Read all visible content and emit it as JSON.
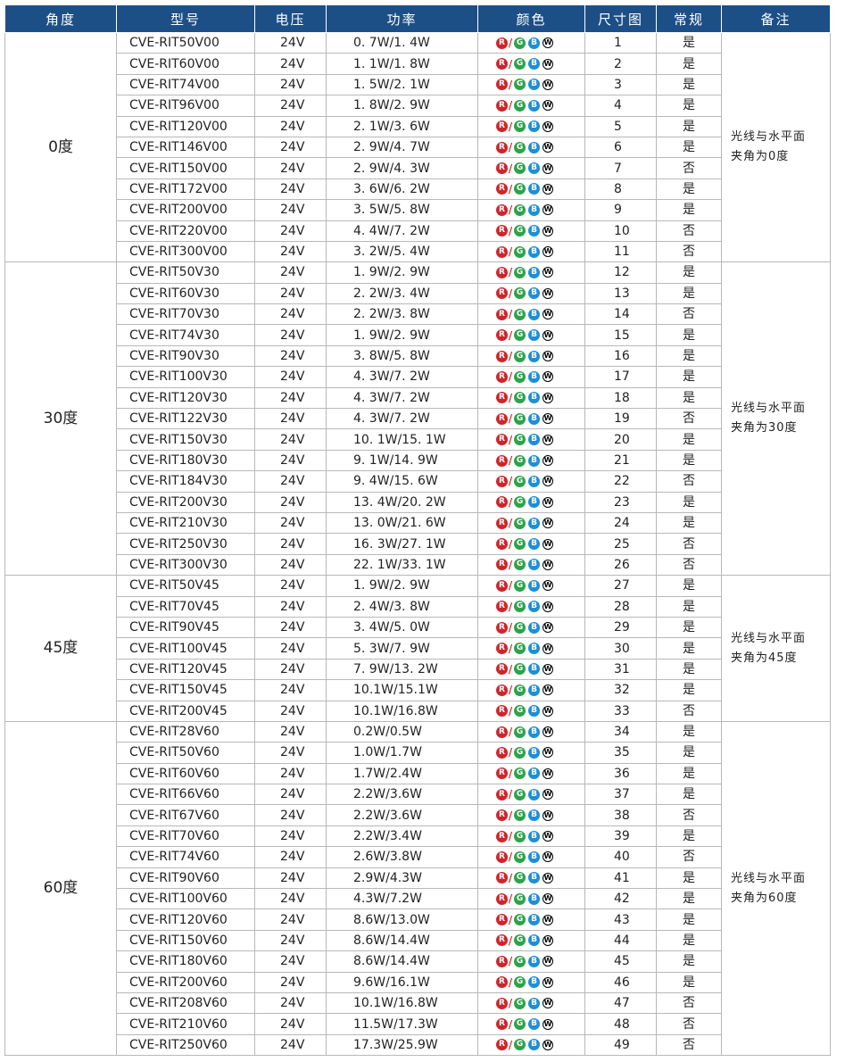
{
  "header": {
    "columns": [
      "角度",
      "型号",
      "电压",
      "功率",
      "颜色",
      "尺寸图",
      "常规",
      "备注"
    ]
  },
  "color_icons": {
    "letters": [
      "R",
      "G",
      "B",
      "W"
    ],
    "separator": "/"
  },
  "groups": [
    {
      "angle": "0度",
      "note": [
        "光线与水平面",
        "夹角为0度"
      ],
      "rows": [
        {
          "model": "CVE-RIT50V00",
          "voltage": "24V",
          "power": "0. 7W/1. 4W",
          "size": 1,
          "regular": "是"
        },
        {
          "model": "CVE-RIT60V00",
          "voltage": "24V",
          "power": "1. 1W/1. 8W",
          "size": 2,
          "regular": "是"
        },
        {
          "model": "CVE-RIT74V00",
          "voltage": "24V",
          "power": "1. 5W/2. 1W",
          "size": 3,
          "regular": "是"
        },
        {
          "model": "CVE-RIT96V00",
          "voltage": "24V",
          "power": "1. 8W/2. 9W",
          "size": 4,
          "regular": "是"
        },
        {
          "model": "CVE-RIT120V00",
          "voltage": "24V",
          "power": "2. 1W/3. 6W",
          "size": 5,
          "regular": "是"
        },
        {
          "model": "CVE-RIT146V00",
          "voltage": "24V",
          "power": "2. 9W/4. 7W",
          "size": 6,
          "regular": "是"
        },
        {
          "model": "CVE-RIT150V00",
          "voltage": "24V",
          "power": "2. 9W/4. 3W",
          "size": 7,
          "regular": "否"
        },
        {
          "model": "CVE-RIT172V00",
          "voltage": "24V",
          "power": "3. 6W/6. 2W",
          "size": 8,
          "regular": "是"
        },
        {
          "model": "CVE-RIT200V00",
          "voltage": "24V",
          "power": "3. 5W/5. 8W",
          "size": 9,
          "regular": "是"
        },
        {
          "model": "CVE-RIT220V00",
          "voltage": "24V",
          "power": "4. 4W/7. 2W",
          "size": 10,
          "regular": "否"
        },
        {
          "model": "CVE-RIT300V00",
          "voltage": "24V",
          "power": "3. 2W/5. 4W",
          "size": 11,
          "regular": "否"
        }
      ]
    },
    {
      "angle": "30度",
      "note": [
        "光线与水平面",
        "夹角为30度"
      ],
      "rows": [
        {
          "model": "CVE-RIT50V30",
          "voltage": "24V",
          "power": "1. 9W/2. 9W",
          "size": 12,
          "regular": "是"
        },
        {
          "model": "CVE-RIT60V30",
          "voltage": "24V",
          "power": "2. 2W/3. 4W",
          "size": 13,
          "regular": "是"
        },
        {
          "model": "CVE-RIT70V30",
          "voltage": "24V",
          "power": "2. 2W/3. 8W",
          "size": 14,
          "regular": "否"
        },
        {
          "model": "CVE-RIT74V30",
          "voltage": "24V",
          "power": "1. 9W/2. 9W",
          "size": 15,
          "regular": "是"
        },
        {
          "model": "CVE-RIT90V30",
          "voltage": "24V",
          "power": "3. 8W/5. 8W",
          "size": 16,
          "regular": "是"
        },
        {
          "model": "CVE-RIT100V30",
          "voltage": "24V",
          "power": "4. 3W/7. 2W",
          "size": 17,
          "regular": "是"
        },
        {
          "model": "CVE-RIT120V30",
          "voltage": "24V",
          "power": "4. 3W/7. 2W",
          "size": 18,
          "regular": "是"
        },
        {
          "model": "CVE-RIT122V30",
          "voltage": "24V",
          "power": "4. 3W/7. 2W",
          "size": 19,
          "regular": "否"
        },
        {
          "model": "CVE-RIT150V30",
          "voltage": "24V",
          "power": "10. 1W/15. 1W",
          "size": 20,
          "regular": "是"
        },
        {
          "model": "CVE-RIT180V30",
          "voltage": "24V",
          "power": "9. 1W/14. 9W",
          "size": 21,
          "regular": "是"
        },
        {
          "model": "CVE-RIT184V30",
          "voltage": "24V",
          "power": "9. 4W/15. 6W",
          "size": 22,
          "regular": "否"
        },
        {
          "model": "CVE-RIT200V30",
          "voltage": "24V",
          "power": "13. 4W/20. 2W",
          "size": 23,
          "regular": "是"
        },
        {
          "model": "CVE-RIT210V30",
          "voltage": "24V",
          "power": "13. 0W/21. 6W",
          "size": 24,
          "regular": "是"
        },
        {
          "model": "CVE-RIT250V30",
          "voltage": "24V",
          "power": "16. 3W/27. 1W",
          "size": 25,
          "regular": "否"
        },
        {
          "model": "CVE-RIT300V30",
          "voltage": "24V",
          "power": "22. 1W/33. 1W",
          "size": 26,
          "regular": "否"
        }
      ]
    },
    {
      "angle": "45度",
      "note": [
        "光线与水平面",
        "夹角为45度"
      ],
      "rows": [
        {
          "model": "CVE-RIT50V45",
          "voltage": "24V",
          "power": "1. 9W/2. 9W",
          "size": 27,
          "regular": "是"
        },
        {
          "model": "CVE-RIT70V45",
          "voltage": "24V",
          "power": "2. 4W/3. 8W",
          "size": 28,
          "regular": "是"
        },
        {
          "model": "CVE-RIT90V45",
          "voltage": "24V",
          "power": "3. 4W/5. 0W",
          "size": 29,
          "regular": "是"
        },
        {
          "model": "CVE-RIT100V45",
          "voltage": "24V",
          "power": "5. 3W/7. 9W",
          "size": 30,
          "regular": "是"
        },
        {
          "model": "CVE-RIT120V45",
          "voltage": "24V",
          "power": "7. 9W/13. 2W",
          "size": 31,
          "regular": "是"
        },
        {
          "model": "CVE-RIT150V45",
          "voltage": "24V",
          "power": "10.1W/15.1W",
          "size": 32,
          "regular": "是"
        },
        {
          "model": "CVE-RIT200V45",
          "voltage": "24V",
          "power": "10.1W/16.8W",
          "size": 33,
          "regular": "否"
        }
      ]
    },
    {
      "angle": "60度",
      "note": [
        "光线与水平面",
        "夹角为60度"
      ],
      "rows": [
        {
          "model": "CVE-RIT28V60",
          "voltage": "24V",
          "power": "0.2W/0.5W",
          "size": 34,
          "regular": "是"
        },
        {
          "model": "CVE-RIT50V60",
          "voltage": "24V",
          "power": "1.0W/1.7W",
          "size": 35,
          "regular": "是"
        },
        {
          "model": "CVE-RIT60V60",
          "voltage": "24V",
          "power": "1.7W/2.4W",
          "size": 36,
          "regular": "是"
        },
        {
          "model": "CVE-RIT66V60",
          "voltage": "24V",
          "power": "2.2W/3.6W",
          "size": 37,
          "regular": "是"
        },
        {
          "model": "CVE-RIT67V60",
          "voltage": "24V",
          "power": "2.2W/3.6W",
          "size": 38,
          "regular": "否"
        },
        {
          "model": "CVE-RIT70V60",
          "voltage": "24V",
          "power": "2.2W/3.4W",
          "size": 39,
          "regular": "是"
        },
        {
          "model": "CVE-RIT74V60",
          "voltage": "24V",
          "power": "2.6W/3.8W",
          "size": 40,
          "regular": "否"
        },
        {
          "model": "CVE-RIT90V60",
          "voltage": "24V",
          "power": "2.9W/4.3W",
          "size": 41,
          "regular": "是"
        },
        {
          "model": "CVE-RIT100V60",
          "voltage": "24V",
          "power": "4.3W/7.2W",
          "size": 42,
          "regular": "是"
        },
        {
          "model": "CVE-RIT120V60",
          "voltage": "24V",
          "power": "8.6W/13.0W",
          "size": 43,
          "regular": "是"
        },
        {
          "model": "CVE-RIT150V60",
          "voltage": "24V",
          "power": "8.6W/14.4W",
          "size": 44,
          "regular": "是"
        },
        {
          "model": "CVE-RIT180V60",
          "voltage": "24V",
          "power": "8.6W/14.4W",
          "size": 45,
          "regular": "是"
        },
        {
          "model": "CVE-RIT200V60",
          "voltage": "24V",
          "power": "9.6W/16.1W",
          "size": 46,
          "regular": "是"
        },
        {
          "model": "CVE-RIT208V60",
          "voltage": "24V",
          "power": "10.1W/16.8W",
          "size": 47,
          "regular": "否"
        },
        {
          "model": "CVE-RIT210V60",
          "voltage": "24V",
          "power": "11.5W/17.3W",
          "size": 48,
          "regular": "否"
        },
        {
          "model": "CVE-RIT250V60",
          "voltage": "24V",
          "power": "17.3W/25.9W",
          "size": 49,
          "regular": "否"
        }
      ]
    }
  ]
}
